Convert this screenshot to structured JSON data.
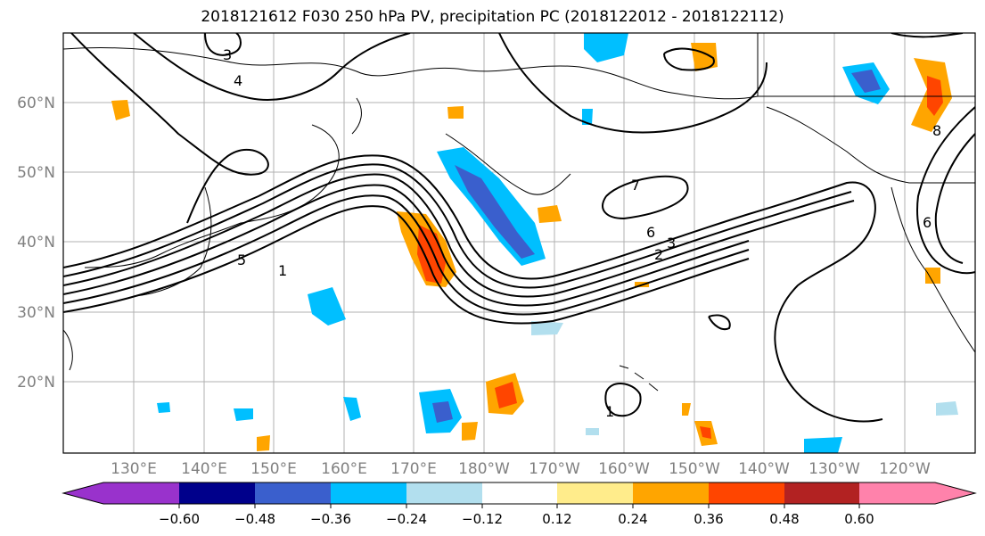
{
  "title": "2018121612 F030 250 hPa PV, precipitation PC (2018122012 - 2018122112)",
  "map": {
    "lat_labels": [
      "60°N",
      "50°N",
      "40°N",
      "30°N",
      "20°N"
    ],
    "lon_labels": [
      "130°E",
      "140°E",
      "150°E",
      "160°E",
      "170°E",
      "180°W",
      "170°W",
      "160°W",
      "150°W",
      "140°W",
      "130°W",
      "120°W"
    ],
    "contour_labels": [
      "3",
      "4",
      "5",
      "6",
      "7",
      "8",
      "1",
      "2"
    ]
  },
  "colorbar": {
    "colors": [
      "#9932cc",
      "#00008b",
      "#3a5fcd",
      "#00bfff",
      "#b2dfee",
      "#ffffff",
      "#ffec8b",
      "#ffa500",
      "#ff4500",
      "#b22222",
      "#ff82ab"
    ],
    "tick_labels": [
      "−0.60",
      "−0.48",
      "−0.36",
      "−0.24",
      "−0.12",
      "0.12",
      "0.24",
      "0.36",
      "0.48",
      "0.60"
    ]
  }
}
